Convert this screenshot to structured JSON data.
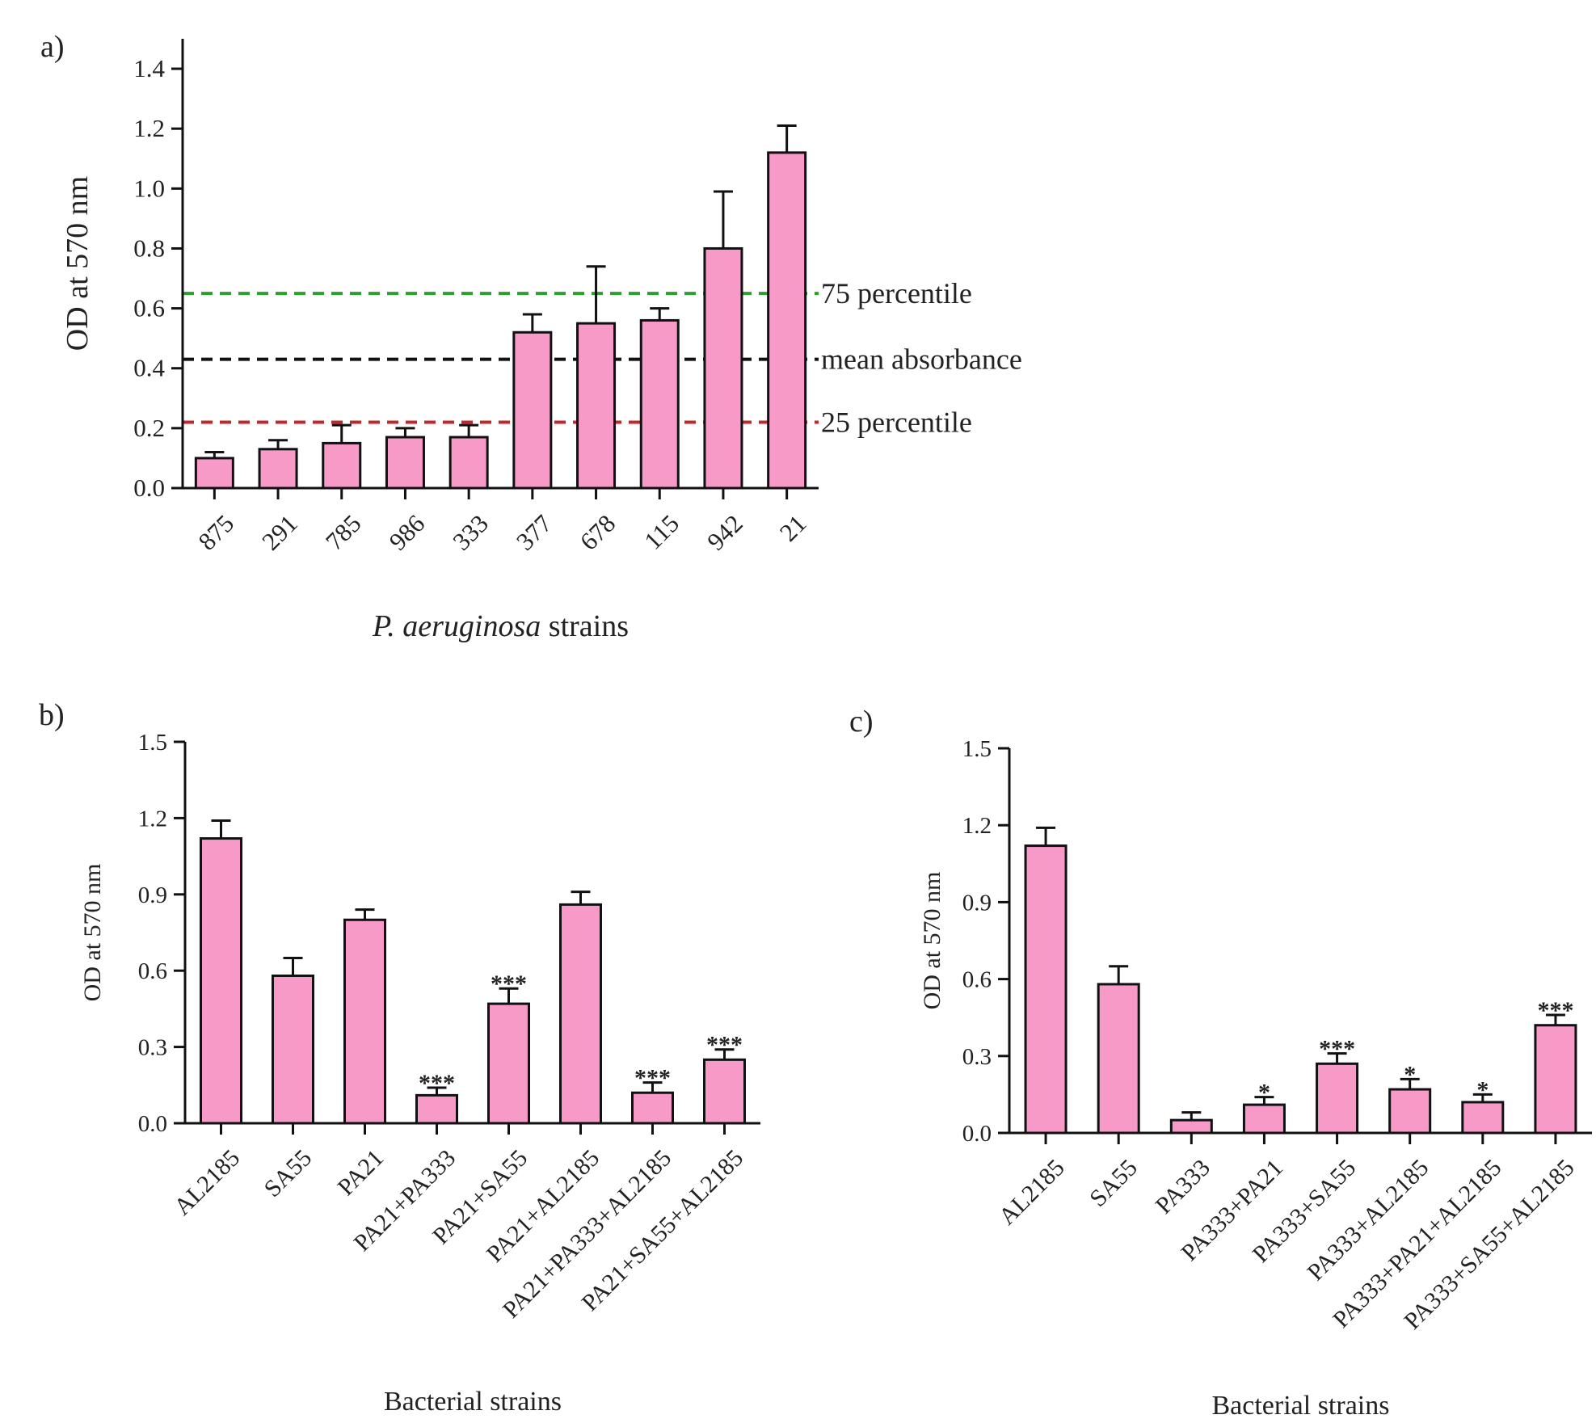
{
  "colors": {
    "bar": "#f79ac8",
    "axis": "#111111",
    "text": "#222222"
  },
  "chart_data": [
    {
      "panel_label": "a)",
      "type": "bar",
      "ylabel": "OD at 570 nm",
      "xlabel_italic": "P. aeruginosa",
      "xlabel_rest": " strains",
      "categories": [
        "875",
        "291",
        "785",
        "986",
        "333",
        "377",
        "678",
        "115",
        "942",
        "21"
      ],
      "values": [
        0.1,
        0.13,
        0.15,
        0.17,
        0.17,
        0.52,
        0.55,
        0.56,
        0.8,
        1.12
      ],
      "errors": [
        0.02,
        0.03,
        0.06,
        0.03,
        0.04,
        0.06,
        0.19,
        0.04,
        0.19,
        0.09
      ],
      "ylim": [
        0,
        1.5
      ],
      "yticks": [
        0.0,
        0.2,
        0.4,
        0.6,
        0.8,
        1.0,
        1.2,
        1.4
      ],
      "ytick_labels": [
        "0.0",
        "0.2",
        "0.4",
        "0.6",
        "0.8",
        "1.0",
        "1.2",
        "1.4"
      ],
      "reference_lines": [
        {
          "label": "75 percentile",
          "value": 0.65,
          "color": "#2ca02c"
        },
        {
          "label": "mean absorbance",
          "value": 0.43,
          "color": "#111111"
        },
        {
          "label": "25 percentile",
          "value": 0.22,
          "color": "#c0282d"
        }
      ]
    },
    {
      "panel_label": "b)",
      "type": "bar",
      "ylabel": "OD at 570 nm",
      "xlabel": "Bacterial strains",
      "categories": [
        "AL2185",
        "SA55",
        "PA21",
        "PA21+PA333",
        "PA21+SA55",
        "PA21+AL2185",
        "PA21+PA333+AL2185",
        "PA21+SA55+AL2185"
      ],
      "values": [
        1.12,
        0.58,
        0.8,
        0.11,
        0.47,
        0.86,
        0.12,
        0.25
      ],
      "errors": [
        0.07,
        0.07,
        0.04,
        0.03,
        0.06,
        0.05,
        0.04,
        0.04
      ],
      "significance": [
        "",
        "",
        "",
        "***",
        "***",
        "",
        "***",
        "***"
      ],
      "ylim": [
        0,
        1.5
      ],
      "yticks": [
        0.0,
        0.3,
        0.6,
        0.9,
        1.2,
        1.5
      ],
      "ytick_labels": [
        "0.0",
        "0.3",
        "0.6",
        "0.9",
        "1.2",
        "1.5"
      ]
    },
    {
      "panel_label": "c)",
      "type": "bar",
      "ylabel": "OD at 570 nm",
      "xlabel": "Bacterial strains",
      "categories": [
        "AL2185",
        "SA55",
        "PA333",
        "PA333+PA21",
        "PA333+SA55",
        "PA333+AL2185",
        "PA333+PA21+AL2185",
        "PA333+SA55+AL2185"
      ],
      "values": [
        1.12,
        0.58,
        0.05,
        0.11,
        0.27,
        0.17,
        0.12,
        0.42
      ],
      "errors": [
        0.07,
        0.07,
        0.03,
        0.03,
        0.04,
        0.04,
        0.03,
        0.04
      ],
      "significance": [
        "",
        "",
        "",
        "*",
        "***",
        "*",
        "*",
        "***"
      ],
      "ylim": [
        0,
        1.5
      ],
      "yticks": [
        0.0,
        0.3,
        0.6,
        0.9,
        1.2,
        1.5
      ],
      "ytick_labels": [
        "0.0",
        "0.3",
        "0.6",
        "0.9",
        "1.2",
        "1.5"
      ]
    }
  ]
}
